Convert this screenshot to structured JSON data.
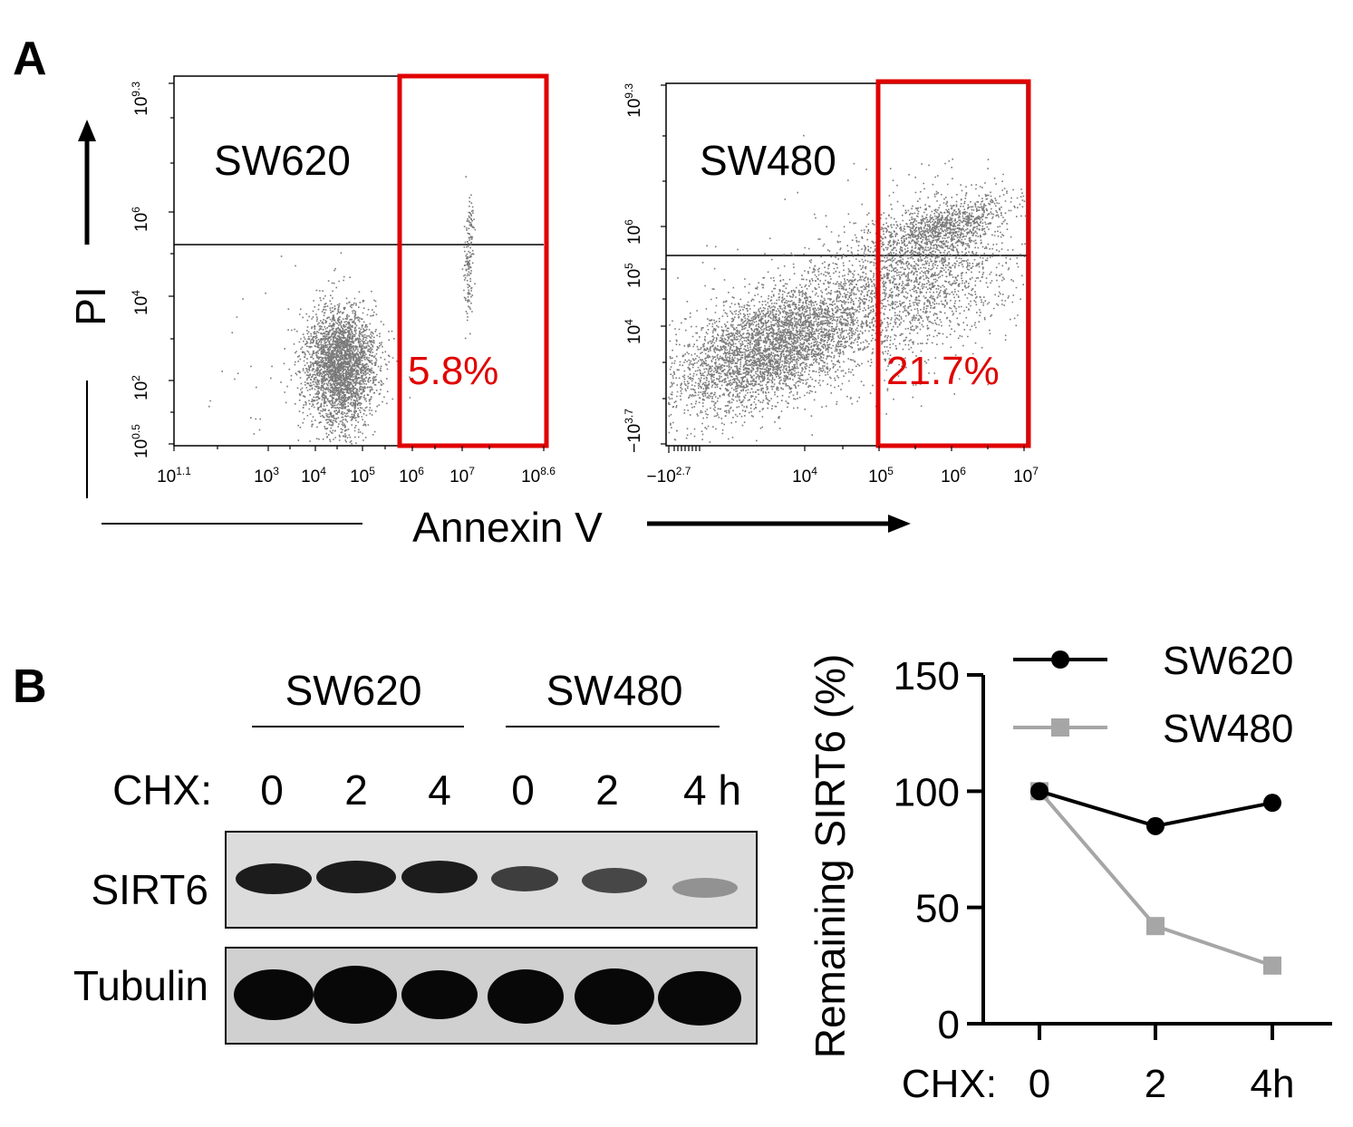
{
  "panel_a": {
    "letter": "A",
    "y_axis_title": "PI",
    "x_axis_title": "Annexin V",
    "gate_color": "#e00000",
    "plots": [
      {
        "cell_line": "SW620",
        "gate_percent": "5.8%",
        "y_ticks": [
          {
            "base": "10",
            "exp": "9.3"
          },
          {
            "base": "10",
            "exp": "6"
          },
          {
            "base": "10",
            "exp": "4"
          },
          {
            "base": "10",
            "exp": "2"
          },
          {
            "base": "10",
            "exp": "0.5"
          }
        ],
        "x_ticks": [
          {
            "base": "10",
            "exp": "1.1"
          },
          {
            "base": "10",
            "exp": "3"
          },
          {
            "base": "10",
            "exp": "4"
          },
          {
            "base": "10",
            "exp": "5"
          },
          {
            "base": "10",
            "exp": "6"
          },
          {
            "base": "10",
            "exp": "7"
          },
          {
            "base": "10",
            "exp": "8.6"
          }
        ]
      },
      {
        "cell_line": "SW480",
        "gate_percent": "21.7%",
        "y_ticks": [
          {
            "base": "10",
            "exp": "9.3"
          },
          {
            "base": "10",
            "exp": "6"
          },
          {
            "base": "10",
            "exp": "5"
          },
          {
            "base": "10",
            "exp": "4"
          },
          {
            "base": "−10",
            "exp": "3.7"
          }
        ],
        "x_ticks": [
          {
            "base": "−10",
            "exp": "2.7"
          },
          {
            "base": "10",
            "exp": "4"
          },
          {
            "base": "10",
            "exp": "5"
          },
          {
            "base": "10",
            "exp": "6"
          },
          {
            "base": "10",
            "exp": "7"
          }
        ]
      }
    ]
  },
  "panel_b": {
    "letter": "B",
    "western_blot": {
      "groups": [
        "SW620",
        "SW480"
      ],
      "treatment_label": "CHX:",
      "timepoints": [
        "0",
        "2",
        "4",
        "0",
        "2",
        "4 h"
      ],
      "rows": [
        "SIRT6",
        "Tubulin"
      ]
    }
  },
  "chart_data": {
    "type": "line",
    "title": "",
    "xlabel": "CHX:",
    "ylabel": "Remaining SIRT6 (%)",
    "categories": [
      "0",
      "2",
      "4h"
    ],
    "ylim": [
      0,
      150
    ],
    "yticks": [
      "0",
      "50",
      "100",
      "150"
    ],
    "legend_position": "top-right",
    "series": [
      {
        "name": "SW620",
        "values": [
          100,
          85,
          95
        ],
        "color": "#000000",
        "marker": "circle"
      },
      {
        "name": "SW480",
        "values": [
          100,
          42,
          25
        ],
        "color": "#a6a6a6",
        "marker": "square"
      }
    ]
  }
}
